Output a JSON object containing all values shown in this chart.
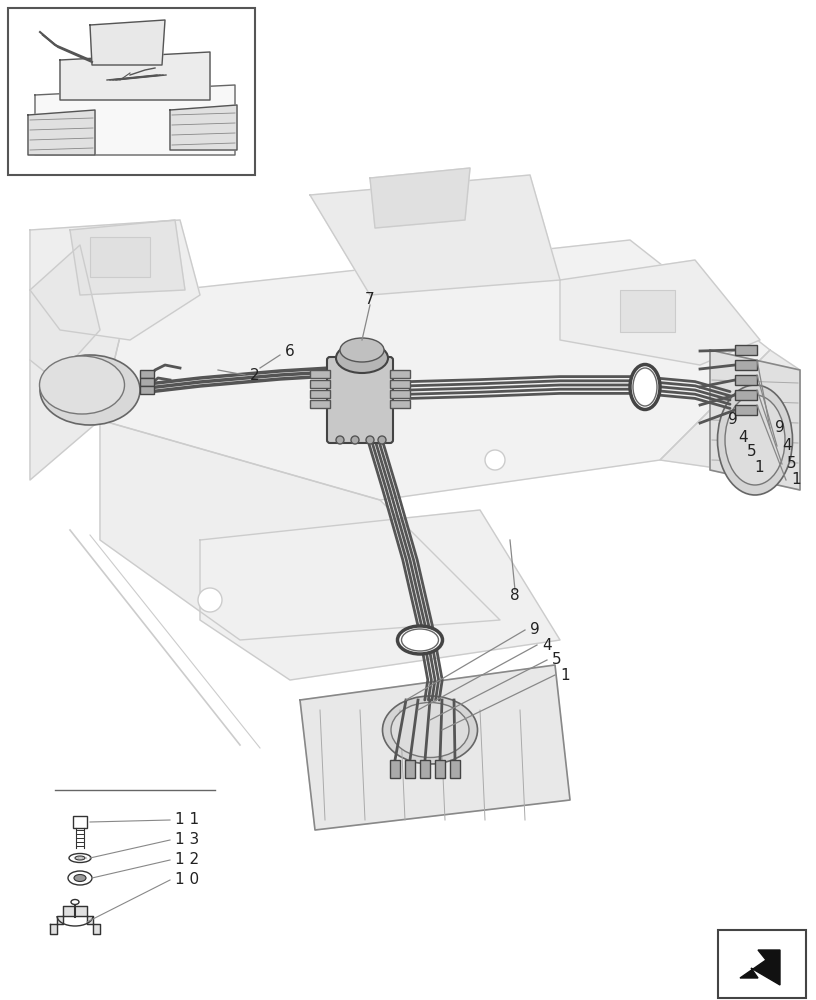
{
  "bg_color": "#ffffff",
  "lc": "#333333",
  "llc": "#aaaaaa",
  "glc": "#cccccc",
  "fig_width": 8.16,
  "fig_height": 10.0,
  "dpi": 100
}
